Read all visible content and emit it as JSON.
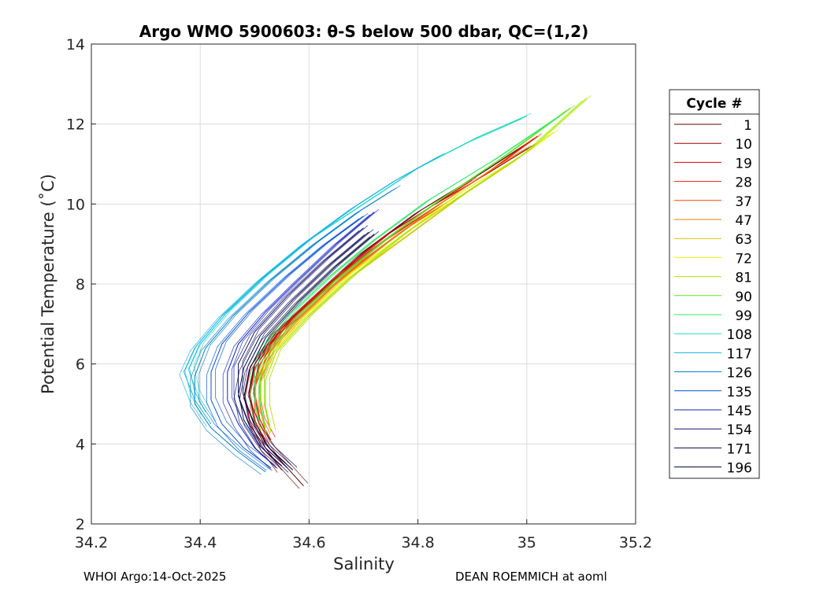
{
  "chart_data": {
    "type": "line",
    "title": "Argo WMO 5900603: θ-S below 500 dbar,  QC=(1,2)",
    "xlabel": "Salinity",
    "ylabel": "Potential Temperature (˚C)",
    "xlim": [
      34.2,
      35.2
    ],
    "ylim": [
      2,
      14
    ],
    "xticks": [
      34.2,
      34.4,
      34.6,
      34.8,
      35,
      35.2
    ],
    "xtick_labels": [
      "34.2",
      "34.4",
      "34.6",
      "34.8",
      "35",
      "35.2"
    ],
    "yticks": [
      2,
      4,
      6,
      8,
      10,
      12,
      14
    ],
    "ytick_labels": [
      "2",
      "4",
      "6",
      "8",
      "10",
      "12",
      "14"
    ],
    "grid": true,
    "legend_title": "Cycle #",
    "legend_position": "right-outside",
    "series": [
      {
        "name": "1",
        "color": "#5a0000",
        "points": [
          [
            34.59,
            2.95
          ],
          [
            34.56,
            3.4
          ],
          [
            34.52,
            4.0
          ],
          [
            34.5,
            4.6
          ],
          [
            34.49,
            5.3
          ],
          [
            34.5,
            6.0
          ],
          [
            34.54,
            6.8
          ],
          [
            34.62,
            7.8
          ],
          [
            34.7,
            8.8
          ],
          [
            34.8,
            9.8
          ],
          [
            34.92,
            10.8
          ],
          [
            35.01,
            11.6
          ]
        ]
      },
      {
        "name": "10",
        "color": "#a00000",
        "points": [
          [
            34.55,
            3.35
          ],
          [
            34.52,
            3.9
          ],
          [
            34.5,
            4.5
          ],
          [
            34.49,
            5.2
          ],
          [
            34.5,
            6.0
          ],
          [
            34.55,
            6.9
          ],
          [
            34.63,
            7.9
          ],
          [
            34.72,
            8.9
          ],
          [
            34.82,
            9.9
          ],
          [
            34.92,
            10.7
          ],
          [
            35.01,
            11.45
          ]
        ]
      },
      {
        "name": "19",
        "color": "#d40000",
        "points": [
          [
            34.52,
            4.05
          ],
          [
            34.5,
            4.6
          ],
          [
            34.49,
            5.2
          ],
          [
            34.5,
            5.9
          ],
          [
            34.54,
            6.7
          ],
          [
            34.6,
            7.5
          ],
          [
            34.66,
            8.3
          ],
          [
            34.74,
            9.2
          ],
          [
            34.82,
            9.9
          ],
          [
            34.9,
            10.6
          ]
        ]
      },
      {
        "name": "28",
        "color": "#f01800",
        "points": [
          [
            34.53,
            4.1
          ],
          [
            34.51,
            4.6
          ],
          [
            34.5,
            5.3
          ],
          [
            34.51,
            6.0
          ],
          [
            34.55,
            6.9
          ],
          [
            34.63,
            7.9
          ],
          [
            34.73,
            9.0
          ],
          [
            34.84,
            10.0
          ],
          [
            34.93,
            10.8
          ],
          [
            35.02,
            11.7
          ]
        ]
      },
      {
        "name": "37",
        "color": "#f04800",
        "points": [
          [
            34.52,
            4.2
          ],
          [
            34.5,
            4.8
          ],
          [
            34.5,
            5.4
          ],
          [
            34.52,
            6.1
          ],
          [
            34.56,
            6.9
          ],
          [
            34.63,
            7.8
          ],
          [
            34.7,
            8.6
          ],
          [
            34.78,
            9.4
          ],
          [
            34.86,
            10.1
          ]
        ]
      },
      {
        "name": "47",
        "color": "#e88000",
        "points": [
          [
            34.52,
            4.3
          ],
          [
            34.51,
            4.9
          ],
          [
            34.51,
            5.6
          ],
          [
            34.53,
            6.3
          ],
          [
            34.58,
            7.1
          ],
          [
            34.65,
            8.0
          ],
          [
            34.74,
            9.0
          ],
          [
            34.84,
            10.0
          ],
          [
            34.94,
            10.9
          ],
          [
            35.0,
            11.4
          ]
        ]
      },
      {
        "name": "63",
        "color": "#d8c000",
        "points": [
          [
            34.53,
            4.3
          ],
          [
            34.52,
            4.9
          ],
          [
            34.52,
            5.6
          ],
          [
            34.54,
            6.3
          ],
          [
            34.6,
            7.2
          ],
          [
            34.68,
            8.2
          ],
          [
            34.78,
            9.2
          ],
          [
            34.88,
            10.2
          ],
          [
            34.98,
            11.1
          ]
        ]
      },
      {
        "name": "72",
        "color": "#f0f000",
        "points": [
          [
            34.52,
            4.4
          ],
          [
            34.51,
            5.0
          ],
          [
            34.51,
            5.7
          ],
          [
            34.54,
            6.4
          ],
          [
            34.6,
            7.3
          ],
          [
            34.68,
            8.3
          ],
          [
            34.78,
            9.3
          ],
          [
            34.88,
            10.3
          ],
          [
            34.99,
            11.2
          ],
          [
            35.05,
            11.8
          ]
        ]
      },
      {
        "name": "81",
        "color": "#a8e800",
        "points": [
          [
            34.53,
            4.3
          ],
          [
            34.52,
            4.9
          ],
          [
            34.52,
            5.6
          ],
          [
            34.54,
            6.3
          ],
          [
            34.6,
            7.2
          ],
          [
            34.68,
            8.2
          ],
          [
            34.78,
            9.3
          ],
          [
            34.9,
            10.4
          ],
          [
            35.0,
            11.3
          ],
          [
            35.11,
            12.65
          ]
        ]
      },
      {
        "name": "90",
        "color": "#60e820",
        "points": [
          [
            34.52,
            4.4
          ],
          [
            34.51,
            5.0
          ],
          [
            34.51,
            5.7
          ],
          [
            34.53,
            6.4
          ],
          [
            34.58,
            7.2
          ],
          [
            34.65,
            8.1
          ],
          [
            34.74,
            9.1
          ],
          [
            34.84,
            10.1
          ],
          [
            34.96,
            11.2
          ],
          [
            35.08,
            12.4
          ]
        ]
      },
      {
        "name": "99",
        "color": "#30e868",
        "points": [
          [
            34.51,
            4.5
          ],
          [
            34.5,
            5.1
          ],
          [
            34.5,
            5.8
          ],
          [
            34.52,
            6.5
          ],
          [
            34.57,
            7.3
          ],
          [
            34.64,
            8.2
          ],
          [
            34.72,
            9.1
          ],
          [
            34.82,
            10.1
          ],
          [
            34.94,
            11.1
          ],
          [
            35.06,
            12.2
          ]
        ]
      },
      {
        "name": "108",
        "color": "#20d8c0",
        "points": [
          [
            34.41,
            4.8
          ],
          [
            34.39,
            5.3
          ],
          [
            34.38,
            5.9
          ],
          [
            34.4,
            6.5
          ],
          [
            34.45,
            7.3
          ],
          [
            34.52,
            8.2
          ],
          [
            34.6,
            9.1
          ],
          [
            34.7,
            10.0
          ],
          [
            34.8,
            10.9
          ],
          [
            34.9,
            11.6
          ],
          [
            35.0,
            12.2
          ]
        ]
      },
      {
        "name": "117",
        "color": "#10b0e8",
        "points": [
          [
            34.42,
            4.5
          ],
          [
            34.39,
            5.1
          ],
          [
            34.37,
            5.8
          ],
          [
            34.39,
            6.4
          ],
          [
            34.44,
            7.2
          ],
          [
            34.51,
            8.1
          ],
          [
            34.59,
            9.0
          ],
          [
            34.68,
            9.9
          ],
          [
            34.76,
            10.6
          ],
          [
            34.84,
            11.2
          ]
        ]
      },
      {
        "name": "126",
        "color": "#0080c8",
        "points": [
          [
            34.52,
            3.3
          ],
          [
            34.47,
            3.8
          ],
          [
            34.42,
            4.4
          ],
          [
            34.39,
            5.0
          ],
          [
            34.39,
            5.7
          ],
          [
            34.41,
            6.4
          ],
          [
            34.46,
            7.2
          ],
          [
            34.53,
            8.1
          ],
          [
            34.61,
            9.0
          ],
          [
            34.69,
            9.8
          ],
          [
            34.76,
            10.4
          ]
        ]
      },
      {
        "name": "135",
        "color": "#0050d8",
        "points": [
          [
            34.53,
            3.4
          ],
          [
            34.48,
            3.9
          ],
          [
            34.44,
            4.5
          ],
          [
            34.42,
            5.1
          ],
          [
            34.42,
            5.8
          ],
          [
            34.44,
            6.5
          ],
          [
            34.49,
            7.3
          ],
          [
            34.56,
            8.2
          ],
          [
            34.63,
            9.0
          ],
          [
            34.7,
            9.7
          ]
        ]
      },
      {
        "name": "145",
        "color": "#1020c0",
        "points": [
          [
            34.54,
            3.4
          ],
          [
            34.5,
            3.9
          ],
          [
            34.47,
            4.5
          ],
          [
            34.45,
            5.1
          ],
          [
            34.45,
            5.8
          ],
          [
            34.47,
            6.5
          ],
          [
            34.52,
            7.3
          ],
          [
            34.58,
            8.1
          ],
          [
            34.65,
            9.0
          ],
          [
            34.72,
            9.8
          ]
        ]
      },
      {
        "name": "154",
        "color": "#101070",
        "points": [
          [
            34.55,
            3.45
          ],
          [
            34.51,
            3.95
          ],
          [
            34.48,
            4.6
          ],
          [
            34.47,
            5.3
          ],
          [
            34.47,
            6.0
          ],
          [
            34.5,
            6.8
          ],
          [
            34.56,
            7.7
          ],
          [
            34.63,
            8.6
          ],
          [
            34.7,
            9.4
          ]
        ]
      },
      {
        "name": "171",
        "color": "#080850",
        "points": [
          [
            34.56,
            3.4
          ],
          [
            34.52,
            3.9
          ],
          [
            34.49,
            4.5
          ],
          [
            34.47,
            5.2
          ],
          [
            34.48,
            5.9
          ],
          [
            34.51,
            6.7
          ],
          [
            34.57,
            7.6
          ],
          [
            34.64,
            8.5
          ],
          [
            34.71,
            9.3
          ]
        ]
      },
      {
        "name": "196",
        "color": "#000040",
        "points": [
          [
            34.57,
            3.35
          ],
          [
            34.53,
            3.85
          ],
          [
            34.5,
            4.45
          ],
          [
            34.48,
            5.15
          ],
          [
            34.49,
            5.85
          ],
          [
            34.52,
            6.65
          ],
          [
            34.58,
            7.55
          ],
          [
            34.65,
            8.45
          ],
          [
            34.72,
            9.25
          ]
        ]
      }
    ]
  },
  "footer": {
    "left": "WHOI Argo:14-Oct-2025",
    "right": "DEAN ROEMMICH at aoml"
  }
}
